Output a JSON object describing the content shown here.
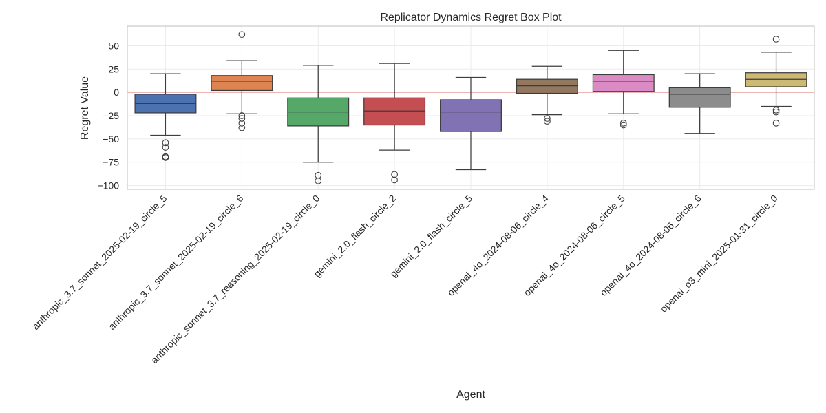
{
  "chart_data": {
    "type": "box",
    "title": "Replicator Dynamics Regret Box Plot",
    "xlabel": "Agent",
    "ylabel": "Regret Value",
    "ylim": [
      -104,
      71
    ],
    "yticks": [
      50,
      25,
      0,
      -25,
      -50,
      -75,
      -100
    ],
    "grid": true,
    "reference_line": {
      "y": 0,
      "color": "#e8a0a0"
    },
    "categories": [
      "anthropic_3.7_sonnet_2025-02-19_circle_5",
      "anthropic_3.7_sonnet_2025-02-19_circle_6",
      "anthropic_sonnet_3.7_reasoning_2025-02-19_circle_0",
      "gemini_2.0_flash_circle_2",
      "gemini_2.0_flash_circle_5",
      "openai_4o_2024-08-06_circle_4",
      "openai_4o_2024-08-06_circle_5",
      "openai_4o_2024-08-06_circle_6",
      "openai_o3_mini_2025-01-31_circle_0"
    ],
    "colors": [
      "#4c72b0",
      "#dd8452",
      "#55a868",
      "#c44e52",
      "#8172b3",
      "#937860",
      "#da8bc3",
      "#8c8c8c",
      "#ccb974"
    ],
    "series": [
      {
        "whisker_low": -46,
        "q1": -22,
        "median": -12,
        "q3": -2,
        "whisker_high": 20,
        "outliers": [
          -54,
          -59,
          -69,
          -70
        ]
      },
      {
        "whisker_low": -23,
        "q1": 2,
        "median": 12,
        "q3": 18,
        "whisker_high": 34,
        "outliers": [
          62,
          -25,
          -28,
          -33,
          -38
        ]
      },
      {
        "whisker_low": -75,
        "q1": -36,
        "median": -21,
        "q3": -6,
        "whisker_high": 29,
        "outliers": [
          -89,
          -95
        ]
      },
      {
        "whisker_low": -62,
        "q1": -35,
        "median": -20,
        "q3": -6,
        "whisker_high": 31,
        "outliers": [
          -88,
          -94
        ]
      },
      {
        "whisker_low": -83,
        "q1": -42,
        "median": -21,
        "q3": -8,
        "whisker_high": 16,
        "outliers": []
      },
      {
        "whisker_low": -24,
        "q1": -1,
        "median": 7,
        "q3": 14,
        "whisker_high": 28,
        "outliers": [
          -28,
          -31
        ]
      },
      {
        "whisker_low": -23,
        "q1": 1,
        "median": 12,
        "q3": 19,
        "whisker_high": 45,
        "outliers": [
          -33,
          -35
        ]
      },
      {
        "whisker_low": -44,
        "q1": -16,
        "median": -2,
        "q3": 5,
        "whisker_high": 20,
        "outliers": []
      },
      {
        "whisker_low": -15,
        "q1": 6,
        "median": 14,
        "q3": 21,
        "whisker_high": 43,
        "outliers": [
          57,
          -19,
          -21,
          -33
        ]
      }
    ]
  }
}
